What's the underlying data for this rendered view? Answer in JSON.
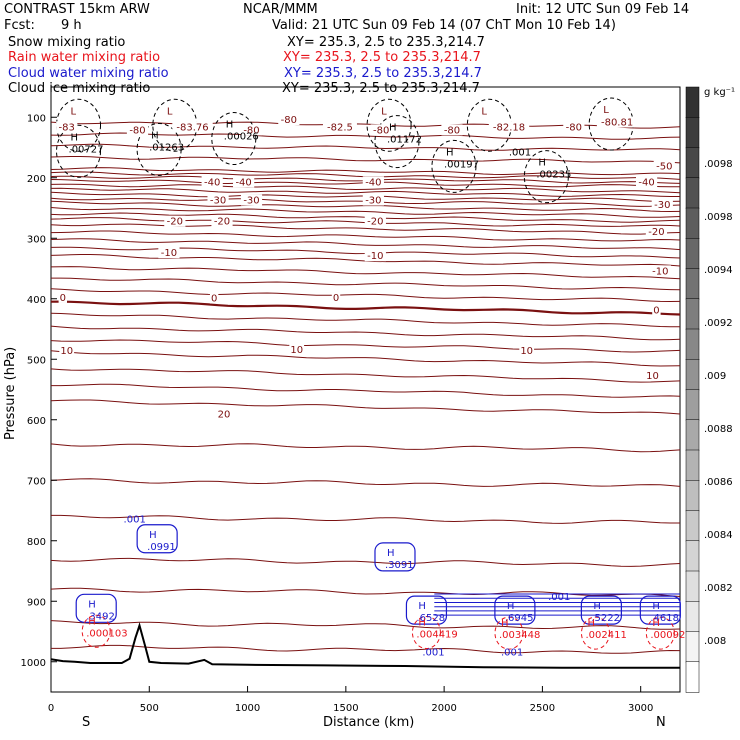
{
  "header": {
    "model": "CONTRAST 15km ARW",
    "center": "NCAR/MMM",
    "init": "Init: 12 UTC Sun 09 Feb 14",
    "fcst_label": "Fcst:",
    "fcst_value": "9 h",
    "valid": "Valid: 21 UTC Sun 09 Feb 14 (07 ChT Mon 10 Feb 14)",
    "fields": [
      {
        "name": "Snow mixing ratio",
        "xy": "XY= 235.3,  2.5 to 235.3,214.7",
        "color": "#000000"
      },
      {
        "name": "Rain water mixing ratio",
        "xy": "XY= 235.3,  2.5 to 235.3,214.7",
        "color": "#e8141c"
      },
      {
        "name": "Cloud water mixing ratio",
        "xy": "XY= 235.3,  2.5 to 235.3,214.7",
        "color": "#1a1acc"
      },
      {
        "name": "Cloud ice mixing ratio",
        "xy": "XY= 235.3,  2.5 to 235.3,214.7",
        "color": "#000000"
      }
    ]
  },
  "chart_data": {
    "type": "contour-cross-section",
    "xlabel": "Distance (km)",
    "ylabel": "Pressure (hPa)",
    "xlim": [
      0,
      3200
    ],
    "ylim": [
      1050,
      50
    ],
    "x_ticks": [
      0,
      500,
      1000,
      1500,
      2000,
      2500,
      3000
    ],
    "y_ticks": [
      100,
      200,
      300,
      400,
      500,
      600,
      700,
      800,
      900,
      1000
    ],
    "x_end_labels": {
      "left": "S",
      "right": "N"
    },
    "colorbar": {
      "unit": "g kg⁻¹",
      "labels": [
        ".0098",
        ".0098",
        ".0094",
        ".0092",
        ".009",
        ".0088",
        ".0086",
        ".0084",
        ".0082",
        ".008"
      ]
    },
    "temperature_isotherms": [
      {
        "level": -80,
        "p": 108
      },
      {
        "level": -50,
        "p": 185
      },
      {
        "level": -40,
        "p": 211
      },
      {
        "level": -30,
        "p": 241
      },
      {
        "level": -20,
        "p": 276
      },
      {
        "level": -10,
        "p": 328
      },
      {
        "level": 0,
        "p": 405
      },
      {
        "level": 10,
        "p": 488
      },
      {
        "level": 20,
        "p": 595
      }
    ],
    "isotherm_labels": [
      {
        "text": "-83",
        "x": 80,
        "p": 120
      },
      {
        "text": "-80",
        "x": 440,
        "p": 125
      },
      {
        "text": "-83.76",
        "x": 720,
        "p": 120
      },
      {
        "text": "-80",
        "x": 1020,
        "p": 125
      },
      {
        "text": "-80",
        "x": 1210,
        "p": 108
      },
      {
        "text": "-82.5",
        "x": 1470,
        "p": 120
      },
      {
        "text": "-80",
        "x": 1680,
        "p": 125
      },
      {
        "text": "-80",
        "x": 2040,
        "p": 125
      },
      {
        "text": "-82.18",
        "x": 2330,
        "p": 120
      },
      {
        "text": "-80",
        "x": 2660,
        "p": 120
      },
      {
        "text": "-80.81",
        "x": 2880,
        "p": 112
      },
      {
        "text": "-50",
        "x": 3120,
        "p": 185
      },
      {
        "text": "-40",
        "x": 820,
        "p": 211
      },
      {
        "text": "-40",
        "x": 980,
        "p": 211
      },
      {
        "text": "-40",
        "x": 1640,
        "p": 211
      },
      {
        "text": "-40",
        "x": 3030,
        "p": 211
      },
      {
        "text": "-30",
        "x": 850,
        "p": 241
      },
      {
        "text": "-30",
        "x": 1020,
        "p": 241
      },
      {
        "text": "-30",
        "x": 1640,
        "p": 241
      },
      {
        "text": "-30",
        "x": 3110,
        "p": 248
      },
      {
        "text": "-20",
        "x": 630,
        "p": 276
      },
      {
        "text": "-20",
        "x": 870,
        "p": 276
      },
      {
        "text": "-20",
        "x": 1650,
        "p": 276
      },
      {
        "text": "-20",
        "x": 3080,
        "p": 293
      },
      {
        "text": "-10",
        "x": 600,
        "p": 328
      },
      {
        "text": "-10",
        "x": 1650,
        "p": 333
      },
      {
        "text": "-10",
        "x": 3100,
        "p": 358
      },
      {
        "text": "0",
        "x": 60,
        "p": 402
      },
      {
        "text": "0",
        "x": 830,
        "p": 403
      },
      {
        "text": "0",
        "x": 1450,
        "p": 402
      },
      {
        "text": "0",
        "x": 3080,
        "p": 423
      },
      {
        "text": "10",
        "x": 80,
        "p": 490
      },
      {
        "text": "10",
        "x": 1250,
        "p": 488
      },
      {
        "text": "10",
        "x": 2420,
        "p": 490
      },
      {
        "text": "10",
        "x": 3060,
        "p": 531
      },
      {
        "text": "20",
        "x": 880,
        "p": 595
      }
    ],
    "maxima_labels": [
      {
        "symbol": "L",
        "value": "",
        "x": 140,
        "p": 100,
        "color": "#7a0d0d"
      },
      {
        "symbol": "L",
        "value": "",
        "x": 630,
        "p": 100,
        "color": "#7a0d0d"
      },
      {
        "symbol": "L",
        "value": "",
        "x": 1720,
        "p": 100,
        "color": "#7a0d0d"
      },
      {
        "symbol": "L",
        "value": "",
        "x": 2230,
        "p": 100,
        "color": "#7a0d0d"
      },
      {
        "symbol": "L",
        "value": "",
        "x": 2850,
        "p": 98,
        "color": "#7a0d0d"
      },
      {
        "symbol": "H",
        "value": ".00727",
        "x": 140,
        "p": 143,
        "color": "#000000"
      },
      {
        "symbol": "H",
        "value": ".01263",
        "x": 550,
        "p": 140,
        "color": "#000000"
      },
      {
        "symbol": "H",
        "value": ".00026",
        "x": 930,
        "p": 122,
        "color": "#000000"
      },
      {
        "symbol": "H",
        "value": ".01172",
        "x": 1760,
        "p": 127,
        "color": "#000000"
      },
      {
        "symbol": "H",
        "value": ".00197",
        "x": 2050,
        "p": 168,
        "color": "#000000"
      },
      {
        "symbol": "H",
        "value": ".00235",
        "x": 2520,
        "p": 185,
        "color": "#000000"
      },
      {
        "symbol": "",
        "value": ".001",
        "x": 2380,
        "p": 148,
        "color": "#000000"
      },
      {
        "symbol": "",
        "value": ".001",
        "x": 420,
        "p": 755,
        "color": "#1a1acc"
      },
      {
        "symbol": "H",
        "value": ".0991",
        "x": 540,
        "p": 800,
        "color": "#1a1acc"
      },
      {
        "symbol": "H",
        "value": ".3091",
        "x": 1750,
        "p": 830,
        "color": "#1a1acc"
      },
      {
        "symbol": "H",
        "value": ".3492",
        "x": 230,
        "p": 915,
        "color": "#1a1acc"
      },
      {
        "symbol": "H",
        "value": ".000103",
        "x": 230,
        "p": 943,
        "color": "#e8141c"
      },
      {
        "symbol": "H",
        "value": ".6528",
        "x": 1910,
        "p": 918,
        "color": "#1a1acc"
      },
      {
        "symbol": "H",
        "value": ".004419",
        "x": 1910,
        "p": 945,
        "color": "#e8141c"
      },
      {
        "symbol": "",
        "value": ".001",
        "x": 1940,
        "p": 975,
        "color": "#1a1acc"
      },
      {
        "symbol": "H",
        "value": ".6945",
        "x": 2360,
        "p": 918,
        "color": "#1a1acc"
      },
      {
        "symbol": "H",
        "value": ".003448",
        "x": 2330,
        "p": 946,
        "color": "#e8141c"
      },
      {
        "symbol": "",
        "value": ".001",
        "x": 2340,
        "p": 975,
        "color": "#1a1acc"
      },
      {
        "symbol": "",
        "value": ".001",
        "x": 2580,
        "p": 883,
        "color": "#1a1acc"
      },
      {
        "symbol": "H",
        "value": ".5222",
        "x": 2800,
        "p": 918,
        "color": "#1a1acc"
      },
      {
        "symbol": "H",
        "value": ".002411",
        "x": 2770,
        "p": 946,
        "color": "#e8141c"
      },
      {
        "symbol": "H",
        "value": ".4618",
        "x": 3100,
        "p": 918,
        "color": "#1a1acc"
      },
      {
        "symbol": "H",
        "value": ".00092",
        "x": 3100,
        "p": 946,
        "color": "#e8141c"
      }
    ],
    "terrain": {
      "x": [
        0,
        60,
        120,
        200,
        300,
        360,
        400,
        430,
        450,
        480,
        500,
        560,
        700,
        780,
        820,
        1000,
        1400,
        1800,
        2200,
        2600,
        3000,
        3200
      ],
      "p": [
        996,
        999,
        1000,
        1002,
        1002,
        1002,
        995,
        960,
        940,
        975,
        1000,
        1002,
        1003,
        997,
        1004,
        1005,
        1006,
        1007,
        1009,
        1010,
        1010,
        1010
      ]
    }
  }
}
